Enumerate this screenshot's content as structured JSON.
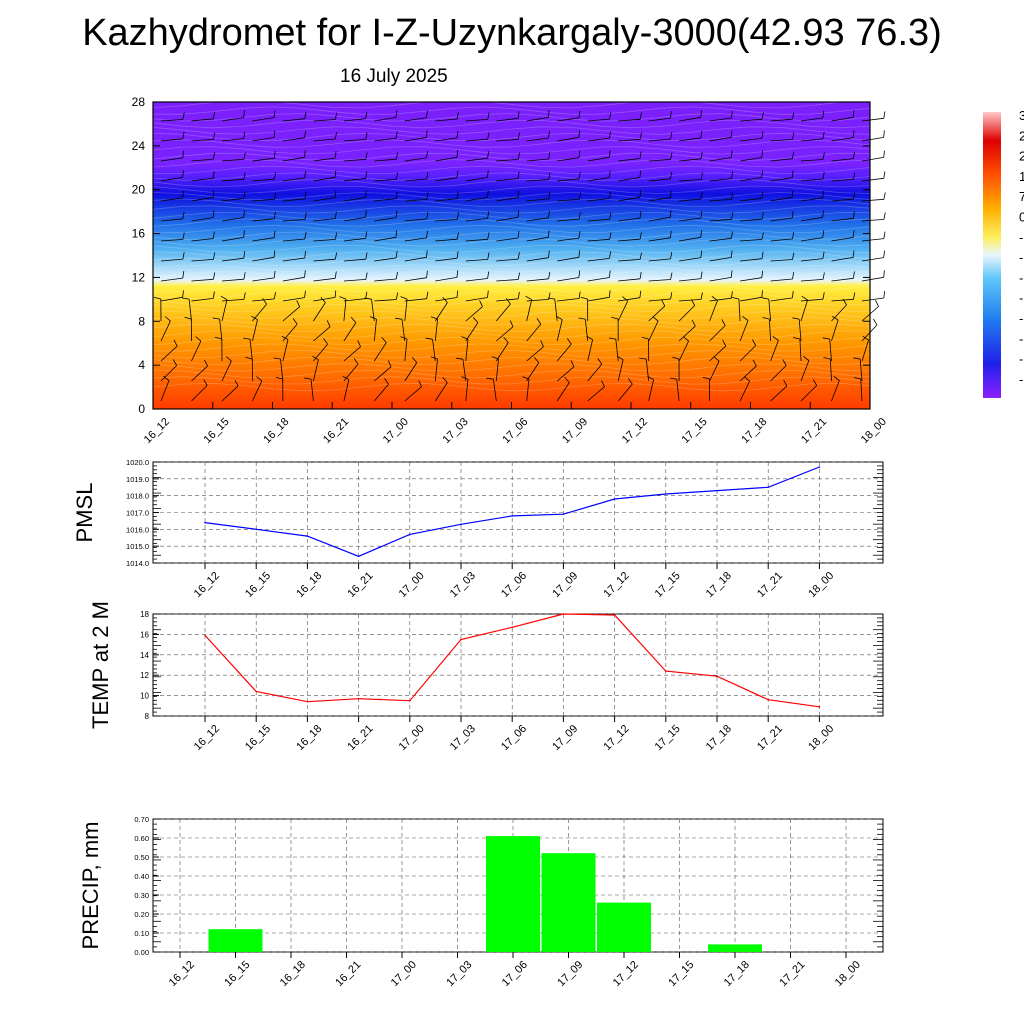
{
  "title": "Kazhydromet for I-Z-Uzynkargaly-3000(42.93 76.3)",
  "subtitle": "16 July 2025",
  "chart_data": [
    {
      "type": "heatmap",
      "name": "cross-section",
      "x_ticks": [
        "16_12",
        "16_15",
        "16_18",
        "16_21",
        "17_00",
        "17_03",
        "17_06",
        "17_09",
        "17_12",
        "17_15",
        "17_18",
        "17_21",
        "18_00"
      ],
      "y_ticks": [
        "0",
        "4",
        "8",
        "12",
        "16",
        "20",
        "24",
        "28"
      ],
      "ylim": [
        0,
        28
      ],
      "colorbar_labels": [
        "3",
        "2",
        "2",
        "1",
        "7",
        "0",
        "-",
        "-",
        "-",
        "-",
        "-",
        "-",
        "-",
        "-"
      ],
      "colors": {
        "cold": "#7a1fff",
        "deep_blue": "#1a1ae6",
        "light_blue": "#5ab4f0",
        "pale": "#e6f2ff",
        "yellow": "#ffe633",
        "orange": "#ff8c00",
        "red": "#ff3300"
      }
    },
    {
      "type": "line",
      "name": "pmsl",
      "ylabel": "PMSL",
      "categories": [
        "16_12",
        "16_15",
        "16_18",
        "16_21",
        "17_00",
        "17_03",
        "17_06",
        "17_09",
        "17_12",
        "17_15",
        "17_18",
        "17_21",
        "18_00"
      ],
      "values": [
        1016.4,
        1016.0,
        1015.6,
        1014.4,
        1015.7,
        1016.3,
        1016.8,
        1016.9,
        1017.8,
        1018.1,
        1018.3,
        1018.5,
        1019.7
      ],
      "ylim": [
        1014.0,
        1020.0
      ],
      "y_ticks": [
        "1014.0",
        "1015.0",
        "1016.0",
        "1017.0",
        "1018.0",
        "1019.0",
        "1020.0"
      ],
      "color": "#0000ff"
    },
    {
      "type": "line",
      "name": "temp",
      "ylabel": "TEMP at 2 M",
      "categories": [
        "16_12",
        "16_15",
        "16_18",
        "16_21",
        "17_00",
        "17_03",
        "17_06",
        "17_09",
        "17_12",
        "17_15",
        "17_18",
        "17_21",
        "18_00"
      ],
      "values": [
        15.9,
        10.4,
        9.4,
        9.7,
        9.5,
        15.5,
        16.7,
        18.0,
        17.9,
        12.4,
        11.9,
        9.6,
        8.9
      ],
      "ylim": [
        8,
        18
      ],
      "y_ticks": [
        "8",
        "10",
        "12",
        "14",
        "16",
        "18"
      ],
      "color": "#ff0000"
    },
    {
      "type": "bar",
      "name": "precip",
      "ylabel": "PRECIP, mm",
      "categories": [
        "16_12",
        "16_15",
        "16_18",
        "16_21",
        "17_00",
        "17_03",
        "17_06",
        "17_09",
        "17_12",
        "17_15",
        "17_18",
        "17_21",
        "18_00"
      ],
      "values": [
        0,
        0.12,
        0,
        0,
        0,
        0,
        0.61,
        0.52,
        0.26,
        0,
        0.04,
        0,
        0
      ],
      "ylim": [
        0,
        0.7
      ],
      "y_ticks": [
        "0.00",
        "0.10",
        "0.20",
        "0.30",
        "0.40",
        "0.50",
        "0.60",
        "0.70"
      ],
      "color": "#00ff00"
    }
  ]
}
